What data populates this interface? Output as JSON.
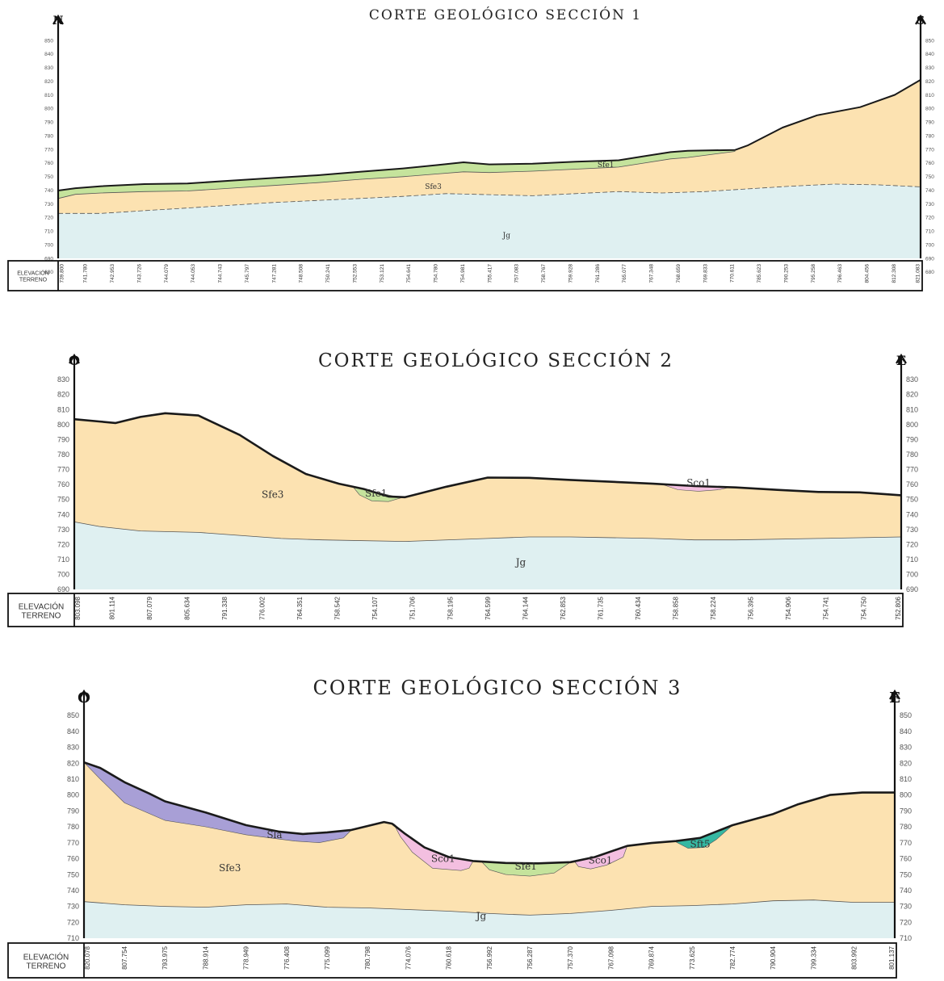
{
  "colors": {
    "jg": "#dff0f1",
    "sfe3": "#fce2b1",
    "sfe1": "#c5e39c",
    "sco1": "#f3bfe0",
    "sla": "#a89fd6",
    "sft5": "#35b8a2",
    "ground_line": "#1a1a1a",
    "contact_line": "#555555"
  },
  "sections": [
    {
      "title": "CORTE GEOLÓGICO SECCIÓN 1",
      "left_dir": "N",
      "right_dir": "S",
      "ylim": [
        690,
        850
      ],
      "ticks": [
        850,
        840,
        830,
        820,
        810,
        800,
        790,
        780,
        770,
        760,
        750,
        740,
        730,
        720,
        710,
        700,
        690,
        680
      ],
      "footer_label": [
        "ELEVACIÓN",
        "TERRENO"
      ],
      "elevations": [
        "739.800",
        "741.780",
        "742.953",
        "743.726",
        "744.079",
        "744.053",
        "744.743",
        "745.797",
        "747.281",
        "748.508",
        "750.241",
        "752.553",
        "753.121",
        "754.641",
        "754.780",
        "754.981",
        "755.417",
        "757.083",
        "758.767",
        "759.928",
        "761.286",
        "765.077",
        "767.348",
        "768.659",
        "769.833",
        "770.611",
        "785.623",
        "790.253",
        "795.258",
        "796.463",
        "804.456",
        "812.308",
        "821.083"
      ],
      "units": [
        {
          "label": "Jg",
          "at": [
            0.52,
            705
          ]
        },
        {
          "label": "Sfe3",
          "at": [
            0.435,
            741
          ]
        },
        {
          "label": "Sfe1",
          "at": [
            0.635,
            757
          ]
        }
      ]
    },
    {
      "title": "CORTE GEOLÓGICO SECCIÓN 2",
      "left_dir": "O",
      "right_dir": "E",
      "ylim": [
        690,
        830
      ],
      "ticks": [
        830,
        820,
        810,
        800,
        790,
        780,
        770,
        760,
        750,
        740,
        730,
        720,
        710,
        700,
        690
      ],
      "footer_label": [
        "ELEVACIÓN",
        "TERRENO"
      ],
      "elevations": [
        "803.098",
        "801.114",
        "807.079",
        "805.634",
        "791.338",
        "776.002",
        "764.351",
        "758.542",
        "754.107",
        "751.706",
        "758.195",
        "764.599",
        "764.144",
        "762.853",
        "761.735",
        "760.434",
        "758.858",
        "758.224",
        "756.395",
        "754.906",
        "754.741",
        "754.750",
        "752.806"
      ],
      "units": [
        {
          "label": "Jg",
          "at": [
            0.54,
            706
          ]
        },
        {
          "label": "Sfe3",
          "at": [
            0.24,
            751
          ]
        },
        {
          "label": "Sfe1",
          "at": [
            0.365,
            752
          ]
        },
        {
          "label": "Sco1",
          "at": [
            0.755,
            759
          ]
        }
      ]
    },
    {
      "title": "CORTE GEOLÓGICO SECCIÓN 3",
      "left_dir": "O",
      "right_dir": "E",
      "ylim": [
        710,
        850
      ],
      "ticks": [
        850,
        840,
        830,
        820,
        810,
        800,
        790,
        780,
        770,
        760,
        750,
        740,
        730,
        720,
        710
      ],
      "footer_label": [
        "ELEVACIÓN",
        "TERRENO"
      ],
      "elevations": [
        "820.078",
        "807.754",
        "793.975",
        "788.914",
        "778.949",
        "776.408",
        "775.099",
        "780.798",
        "774.076",
        "760.618",
        "756.992",
        "756.287",
        "757.370",
        "767.098",
        "769.874",
        "773.625",
        "782.774",
        "790.904",
        "799.334",
        "803.992",
        "801.137"
      ],
      "units": [
        {
          "label": "Jg",
          "at": [
            0.49,
            722
          ]
        },
        {
          "label": "Sfe3",
          "at": [
            0.18,
            752
          ]
        },
        {
          "label": "Sla",
          "at": [
            0.235,
            773
          ]
        },
        {
          "label": "Sco1",
          "at": [
            0.443,
            758
          ]
        },
        {
          "label": "Sfe1",
          "at": [
            0.545,
            753
          ]
        },
        {
          "label": "Sco1",
          "at": [
            0.637,
            757
          ]
        },
        {
          "label": "Sft5",
          "at": [
            0.76,
            767
          ]
        }
      ]
    }
  ]
}
